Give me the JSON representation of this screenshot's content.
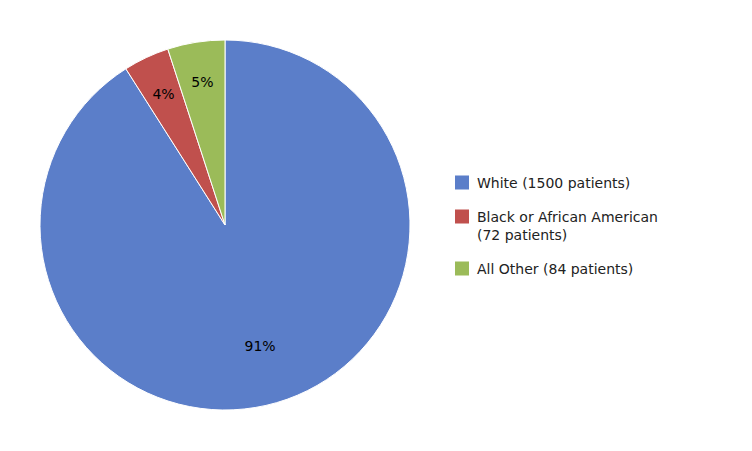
{
  "chart_data": {
    "type": "pie",
    "categories": [
      "White (1500 patients)",
      "Black or African American\n(72 patients)",
      "All Other (84 patients)"
    ],
    "values": [
      91,
      4,
      5
    ],
    "value_labels": [
      "91%",
      "4%",
      "5%"
    ],
    "colors": [
      "#5b7ec9",
      "#c0504d",
      "#9bbb59"
    ],
    "data_labels": true,
    "legend": "right"
  }
}
